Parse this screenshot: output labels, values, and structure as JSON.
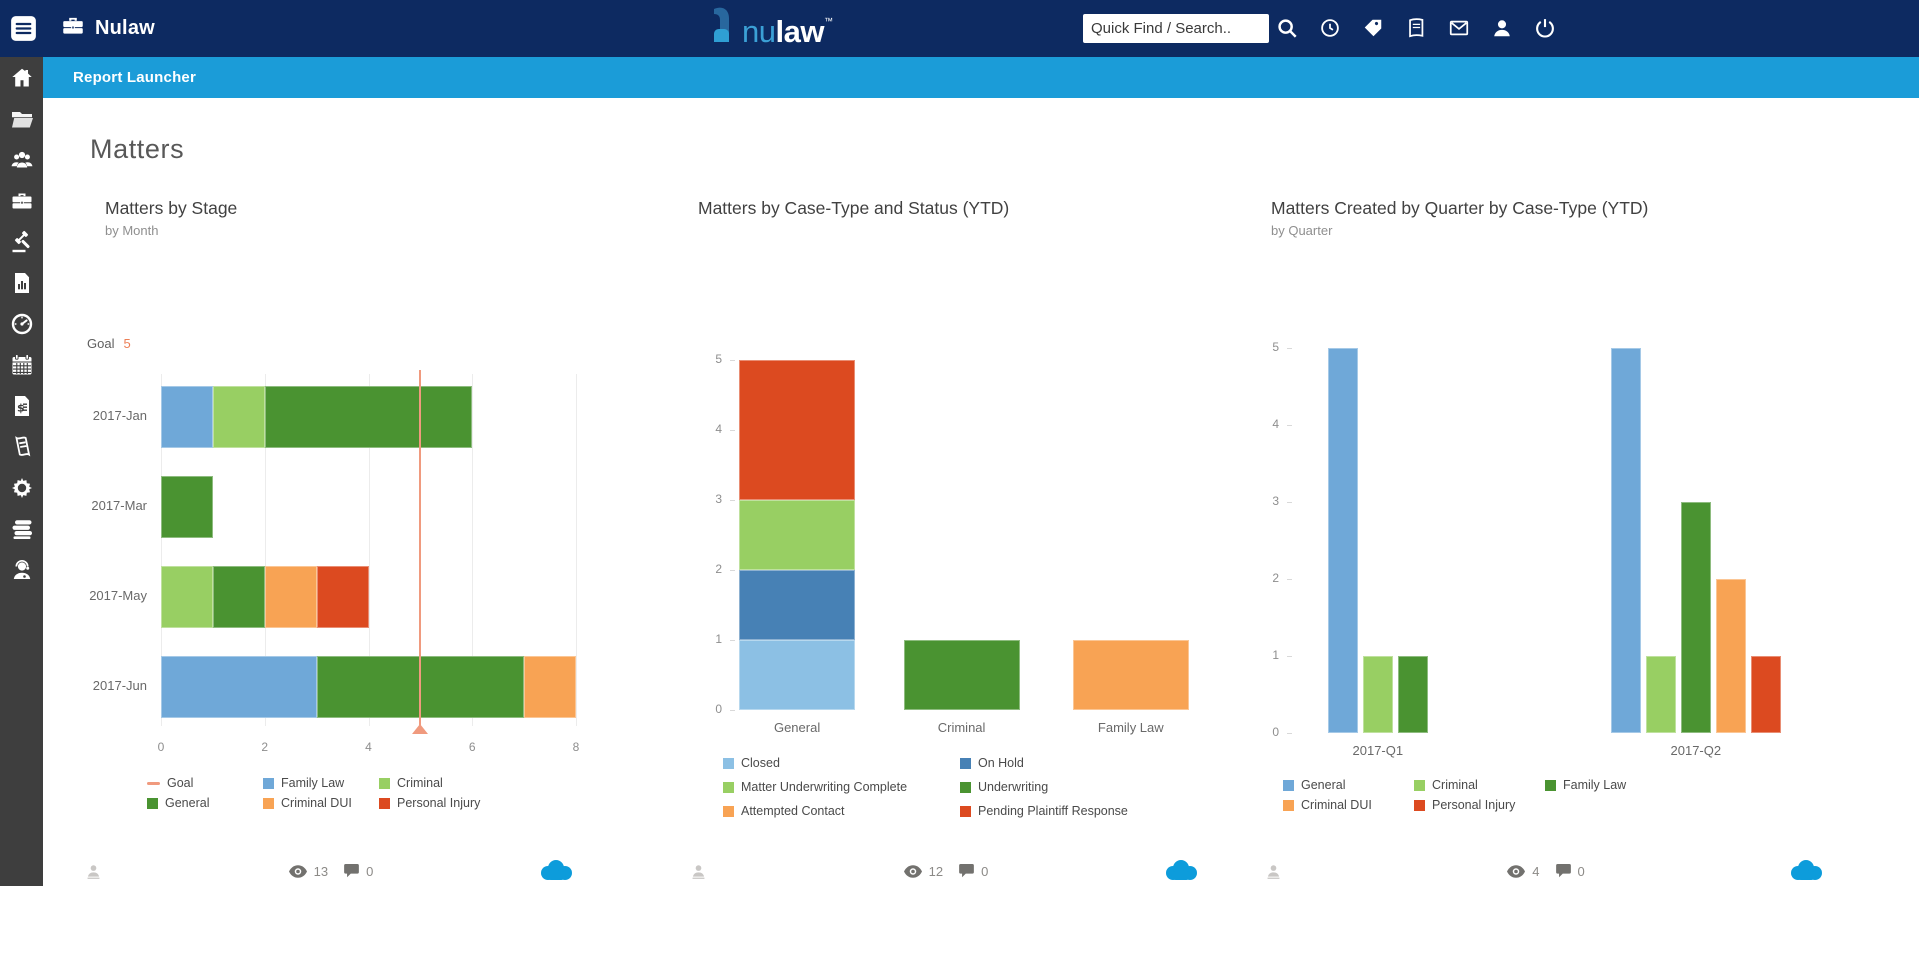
{
  "topbar": {
    "brand": "Nulaw",
    "logo": {
      "prefix": "nu",
      "suffix": "law",
      "tm": "™"
    },
    "search_placeholder": "Quick Find / Search..",
    "icons": [
      "search",
      "clock",
      "tag",
      "ledger",
      "mail",
      "user",
      "power"
    ]
  },
  "subheader": {
    "title": "Report Launcher"
  },
  "sidebar": {
    "items": [
      "home",
      "folder",
      "users",
      "briefcase",
      "gavel",
      "report",
      "gauge",
      "calendar",
      "billing",
      "receipt",
      "settings",
      "library",
      "support"
    ]
  },
  "page": {
    "title": "Matters"
  },
  "chart_data": [
    {
      "type": "bar",
      "orientation": "horizontal-stacked",
      "title": "Matters by Stage",
      "subtitle": "by Month",
      "goal": {
        "label": "Goal",
        "value": 5,
        "color": "#f09a7e"
      },
      "categories": [
        "2017-Jan",
        "2017-Mar",
        "2017-May",
        "2017-Jun"
      ],
      "series": [
        {
          "name": "Family Law",
          "color": "#6fa8d8",
          "values": [
            1,
            0,
            0,
            3
          ]
        },
        {
          "name": "Criminal",
          "color": "#98cf63",
          "values": [
            1,
            0,
            1,
            0
          ]
        },
        {
          "name": "General",
          "color": "#4a9331",
          "values": [
            4,
            1,
            1,
            4
          ]
        },
        {
          "name": "Criminal DUI",
          "color": "#f8a354",
          "values": [
            0,
            0,
            1,
            1
          ]
        },
        {
          "name": "Personal Injury",
          "color": "#dc4a20",
          "values": [
            0,
            0,
            1,
            0
          ]
        }
      ],
      "x_ticks": [
        0,
        2,
        4,
        6,
        8
      ],
      "xlim": [
        0,
        8
      ],
      "legend": [
        {
          "label": "Goal",
          "color": "#f09a7e",
          "shape": "line"
        },
        {
          "label": "Family Law",
          "color": "#6fa8d8",
          "shape": "square"
        },
        {
          "label": "Criminal",
          "color": "#98cf63",
          "shape": "square"
        },
        {
          "label": "General",
          "color": "#4a9331",
          "shape": "square"
        },
        {
          "label": "Criminal DUI",
          "color": "#f8a354",
          "shape": "square"
        },
        {
          "label": "Personal Injury",
          "color": "#dc4a20",
          "shape": "square"
        }
      ],
      "footer": {
        "views": "13",
        "comments": "0"
      }
    },
    {
      "type": "bar",
      "orientation": "vertical-stacked",
      "title": "Matters by Case-Type and Status (YTD)",
      "subtitle": "",
      "categories": [
        "General",
        "Criminal",
        "Family Law"
      ],
      "series": [
        {
          "name": "Closed",
          "color": "#8cc0e4",
          "values": [
            1,
            0,
            0
          ]
        },
        {
          "name": "On Hold",
          "color": "#4781b5",
          "values": [
            1,
            0,
            0
          ]
        },
        {
          "name": "Matter Underwriting Complete",
          "color": "#98cf63",
          "values": [
            1,
            0,
            0
          ]
        },
        {
          "name": "Pending Plaintiff Response",
          "color": "#dc4a20",
          "values": [
            2,
            0,
            0
          ]
        },
        {
          "name": "Underwriting",
          "color": "#4a9331",
          "values": [
            0,
            1,
            0
          ]
        },
        {
          "name": "Attempted Contact",
          "color": "#f8a354",
          "values": [
            0,
            0,
            1
          ]
        }
      ],
      "y_ticks": [
        0,
        1,
        2,
        3,
        4,
        5
      ],
      "ylim": [
        0,
        5
      ],
      "legend": [
        {
          "label": "Closed",
          "color": "#8cc0e4",
          "shape": "square"
        },
        {
          "label": "On Hold",
          "color": "#4781b5",
          "shape": "square"
        },
        {
          "label": "Matter Underwriting Complete",
          "color": "#98cf63",
          "shape": "square"
        },
        {
          "label": "Underwriting",
          "color": "#4a9331",
          "shape": "square"
        },
        {
          "label": "Attempted Contact",
          "color": "#f8a354",
          "shape": "square"
        },
        {
          "label": "Pending Plaintiff Response",
          "color": "#dc4a20",
          "shape": "square"
        }
      ],
      "footer": {
        "views": "12",
        "comments": "0"
      }
    },
    {
      "type": "bar",
      "orientation": "vertical-grouped",
      "title": "Matters Created by Quarter by Case-Type (YTD)",
      "subtitle": "by Quarter",
      "categories": [
        "2017-Q1",
        "2017-Q2"
      ],
      "series": [
        {
          "name": "General",
          "color": "#6fa8d8",
          "values": [
            5,
            5
          ]
        },
        {
          "name": "Criminal",
          "color": "#98cf63",
          "values": [
            1,
            1
          ]
        },
        {
          "name": "Family Law",
          "color": "#4a9331",
          "values": [
            1,
            3
          ]
        },
        {
          "name": "Criminal DUI",
          "color": "#f8a354",
          "values": [
            0,
            2
          ]
        },
        {
          "name": "Personal Injury",
          "color": "#dc4a20",
          "values": [
            0,
            1
          ]
        }
      ],
      "y_ticks": [
        0,
        1,
        2,
        3,
        4,
        5
      ],
      "ylim": [
        0,
        5
      ],
      "legend": [
        {
          "label": "General",
          "color": "#6fa8d8",
          "shape": "square"
        },
        {
          "label": "Criminal",
          "color": "#98cf63",
          "shape": "square"
        },
        {
          "label": "Family Law",
          "color": "#4a9331",
          "shape": "square"
        },
        {
          "label": "Criminal DUI",
          "color": "#f8a354",
          "shape": "square"
        },
        {
          "label": "Personal Injury",
          "color": "#dc4a20",
          "shape": "square"
        }
      ],
      "footer": {
        "views": "4",
        "comments": "0"
      }
    }
  ],
  "colors": {
    "navbar": "#0d2a61",
    "subheader": "#1b9cd8",
    "sidebar": "#3e3e3e",
    "cloud": "#0d9cdb",
    "logo_blue": "#3ba0d6"
  }
}
